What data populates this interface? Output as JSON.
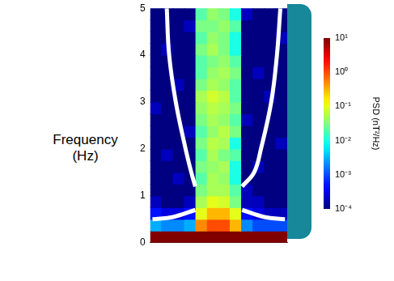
{
  "chart_data": {
    "type": "heatmap",
    "ylabel": "Frequency (Hz)",
    "xlim": [
      0,
      12
    ],
    "ylim": [
      0,
      5
    ],
    "yticks": [
      0,
      1,
      2,
      3,
      4,
      5
    ],
    "tick_labels": "y",
    "grid": false,
    "x_edges": [
      0,
      1,
      2,
      3,
      4,
      5,
      6,
      7,
      8,
      9,
      10,
      11,
      12
    ],
    "y_edges": [
      0,
      0.25,
      0.5,
      0.75,
      1,
      1.25,
      1.5,
      1.75,
      2,
      2.25,
      2.5,
      2.75,
      3,
      3.25,
      3.5,
      3.75,
      4,
      4.25,
      4.5,
      4.75,
      5
    ],
    "cells": [
      [
        10,
        10,
        10,
        10,
        10,
        10,
        10,
        10,
        10,
        10,
        10,
        10
      ],
      [
        0.003,
        0.002,
        0.002,
        0.003,
        0.5,
        1,
        1,
        0.3,
        0.002,
        0.001,
        0.001,
        0.001
      ],
      [
        0.0005,
        0.0003,
        0.0003,
        0.0005,
        0.1,
        0.3,
        0.3,
        0.1,
        0.0005,
        0.0003,
        0.0002,
        0.0002
      ],
      [
        0.0002,
        0.0001,
        0.0001,
        0.0002,
        0.05,
        0.1,
        0.08,
        0.03,
        0.0002,
        0.0002,
        0.0001,
        0.0001
      ],
      [
        0.0001,
        0.0001,
        0.0001,
        0.0001,
        0.03,
        0.05,
        0.05,
        0.02,
        0.0002,
        0.0001,
        0.0001,
        0.0001
      ],
      [
        0.0001,
        0.0001,
        0.0002,
        0.0001,
        0.02,
        0.05,
        0.04,
        0.01,
        0.0001,
        0.0001,
        0.0001,
        0.0001
      ],
      [
        0.0001,
        0.0001,
        0.0001,
        0.0001,
        0.03,
        0.04,
        0.05,
        0.01,
        0.0001,
        0.0002,
        0.0001,
        0.0001
      ],
      [
        0.0001,
        0.0002,
        0.0001,
        0.0001,
        0.02,
        0.05,
        0.03,
        0.02,
        0.0001,
        0.0001,
        0.0001,
        0.0001
      ],
      [
        0.0001,
        0.0001,
        0.0001,
        0.0001,
        0.03,
        0.06,
        0.05,
        0.01,
        0.0001,
        0.0001,
        0.0001,
        0.0002
      ],
      [
        0.0001,
        0.0001,
        0.0001,
        0.0002,
        0.02,
        0.04,
        0.06,
        0.03,
        0.0001,
        0.0001,
        0.0001,
        0.0001
      ],
      [
        0.0001,
        0.0001,
        0.0001,
        0.0001,
        0.03,
        0.05,
        0.04,
        0.02,
        0.0002,
        0.0001,
        0.0001,
        0.0001
      ],
      [
        0.0002,
        0.0001,
        0.0001,
        0.0001,
        0.04,
        0.06,
        0.05,
        0.03,
        0.0001,
        0.0001,
        0.0001,
        0.0001
      ],
      [
        0.0001,
        0.0001,
        0.0001,
        0.0001,
        0.05,
        0.08,
        0.06,
        0.02,
        0.0001,
        0.0001,
        0.0002,
        0.0001
      ],
      [
        0.0001,
        0.0001,
        0.0002,
        0.0001,
        0.03,
        0.05,
        0.04,
        0.02,
        0.0001,
        0.0001,
        0.0001,
        0.0001
      ],
      [
        0.0001,
        0.0001,
        0.0001,
        0.0001,
        0.02,
        0.04,
        0.05,
        0.03,
        0.0001,
        0.0002,
        0.0001,
        0.0001
      ],
      [
        0.0001,
        0.0001,
        0.0001,
        0.0001,
        0.02,
        0.03,
        0.04,
        0.02,
        0.0001,
        0.0001,
        0.0001,
        0.0001
      ],
      [
        0.0001,
        0.0002,
        0.0001,
        0.0001,
        0.03,
        0.05,
        0.03,
        0.01,
        0.0001,
        0.0001,
        0.0001,
        0.0001
      ],
      [
        0.0001,
        0.0001,
        0.0001,
        0.0001,
        0.02,
        0.04,
        0.03,
        0.01,
        0.0001,
        0.0001,
        0.0001,
        0.0002
      ],
      [
        0.0001,
        0.0001,
        0.0001,
        0.0002,
        0.03,
        0.03,
        0.04,
        0.02,
        0.0001,
        0.0001,
        0.0001,
        0.0001
      ],
      [
        0.0001,
        0.0001,
        0.0001,
        0.0001,
        0.02,
        0.04,
        0.03,
        0.01,
        0.0002,
        0.0001,
        0.0001,
        0.0001
      ]
    ],
    "colorbar": {
      "label": "PSD (nT²/Hz)",
      "log": true,
      "range": [
        0.0001,
        10
      ],
      "ticks": [
        {
          "value": 10,
          "label": "10¹"
        },
        {
          "value": 1,
          "label": "10⁰"
        },
        {
          "value": 0.1,
          "label": "10⁻¹"
        },
        {
          "value": 0.01,
          "label": "10⁻²"
        },
        {
          "value": 0.001,
          "label": "10⁻³"
        },
        {
          "value": 0.0001,
          "label": "10⁻⁴"
        }
      ]
    },
    "series": [
      {
        "type": "line",
        "color": "#ffffff",
        "x": [
          1.45,
          1.66,
          2.24,
          3.1,
          3.6,
          3.95,
          6,
          8.05,
          10,
          11.8
        ],
        "values": [
          5,
          4,
          3,
          2,
          1.5,
          1.2,
          null,
          0.7,
          0.55,
          0.5
        ]
      },
      {
        "type": "line",
        "color": "#ffffff",
        "x": [
          11.4,
          11.1,
          10.6,
          9.7,
          9.1,
          8.05,
          6,
          3.95,
          2,
          0.2
        ],
        "values": [
          5,
          4,
          3,
          2,
          1.5,
          1.2,
          null,
          0.7,
          0.55,
          0.5
        ]
      }
    ]
  }
}
